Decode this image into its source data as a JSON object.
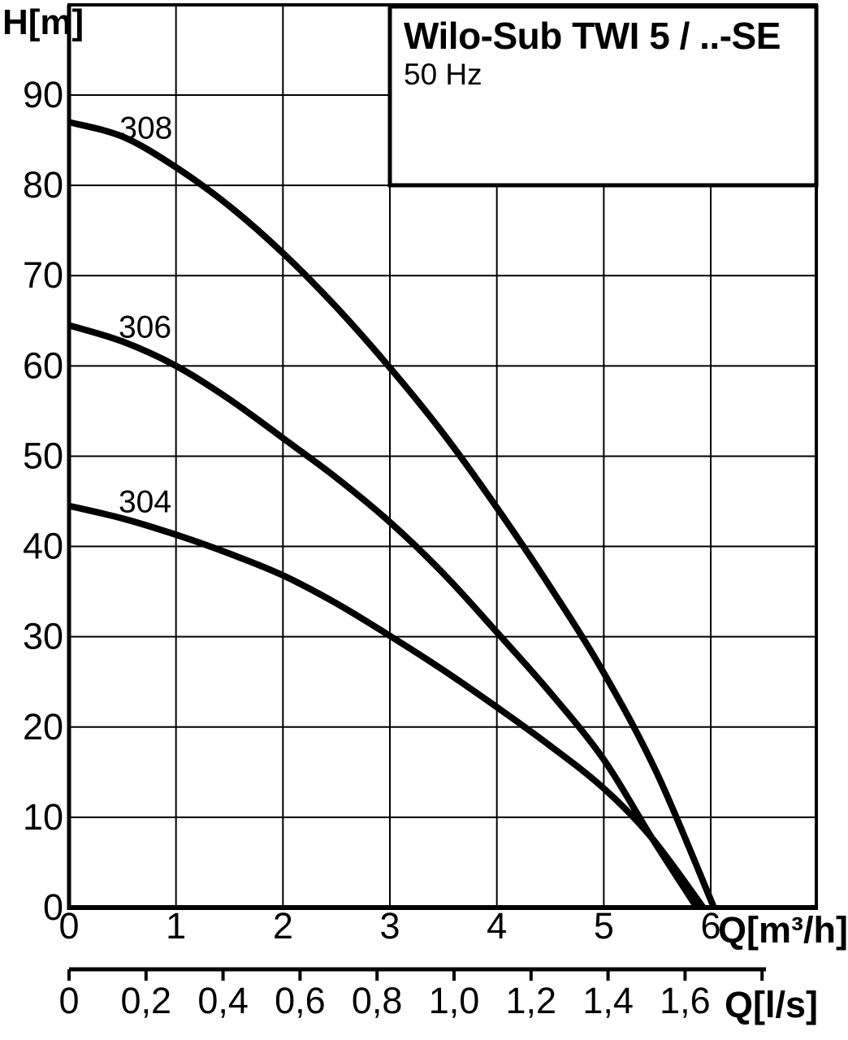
{
  "title_box": {
    "title": "Wilo-Sub TWI 5 / ..-SE",
    "frequency": "50 Hz"
  },
  "chart_data": {
    "type": "line",
    "title": "Wilo-Sub TWI 5 / ..-SE",
    "subtitle": "50 Hz",
    "grid": "on",
    "y_axis": {
      "label": "H[m]",
      "range": [
        0,
        100
      ],
      "gridline_step": 10,
      "tick_labels": [
        "0",
        "10",
        "20",
        "30",
        "40",
        "50",
        "60",
        "70",
        "80",
        "90"
      ]
    },
    "x_axis_primary": {
      "unit_label": "Q[m³/h]",
      "range_shown": [
        0,
        7
      ],
      "gridline_step": 1,
      "tick_values": [
        0,
        1,
        2,
        3,
        4,
        5,
        6
      ],
      "tick_labels": [
        "0",
        "1",
        "2",
        "3",
        "4",
        "5",
        "6"
      ]
    },
    "x_axis_secondary": {
      "unit_label": "Q[l/s]",
      "tick_step_l_per_s": 0.2,
      "tick_labels": [
        "0",
        "0,2",
        "0,4",
        "0,6",
        "0,8",
        "1,0",
        "1,2",
        "1,4",
        "1,6"
      ],
      "unlabeled_trailing_ticks": 1
    },
    "series": [
      {
        "name": "308",
        "label_at": [
          0.72,
          86.3
        ],
        "points": [
          [
            0,
            87
          ],
          [
            0.5,
            85.4
          ],
          [
            1,
            82
          ],
          [
            1.5,
            77.7
          ],
          [
            2,
            72.5
          ],
          [
            2.5,
            66.5
          ],
          [
            3,
            59.8
          ],
          [
            3.5,
            52.5
          ],
          [
            4,
            44.3
          ],
          [
            4.5,
            35.5
          ],
          [
            5,
            26
          ],
          [
            5.5,
            14.8
          ],
          [
            6.03,
            0
          ]
        ]
      },
      {
        "name": "306",
        "label_at": [
          0.71,
          64.3
        ],
        "points": [
          [
            0,
            64.5
          ],
          [
            0.5,
            62.7
          ],
          [
            1,
            60
          ],
          [
            1.5,
            56.3
          ],
          [
            2,
            52
          ],
          [
            2.5,
            47.6
          ],
          [
            3,
            42.7
          ],
          [
            3.5,
            37
          ],
          [
            4,
            30.5
          ],
          [
            4.5,
            23.8
          ],
          [
            5,
            16.4
          ],
          [
            5.45,
            7.7
          ],
          [
            5.87,
            0
          ]
        ]
      },
      {
        "name": "304",
        "label_at": [
          0.71,
          44.9
        ],
        "points": [
          [
            0,
            44.5
          ],
          [
            0.5,
            43.1
          ],
          [
            1,
            41.3
          ],
          [
            1.5,
            39.2
          ],
          [
            2,
            36.8
          ],
          [
            2.5,
            33.7
          ],
          [
            3,
            30.1
          ],
          [
            3.5,
            26.3
          ],
          [
            4,
            22.2
          ],
          [
            4.5,
            17.9
          ],
          [
            5,
            13.2
          ],
          [
            5.45,
            7.7
          ],
          [
            5.93,
            0
          ]
        ]
      }
    ]
  },
  "colors": {
    "ink": "#000000",
    "background": "#ffffff"
  }
}
